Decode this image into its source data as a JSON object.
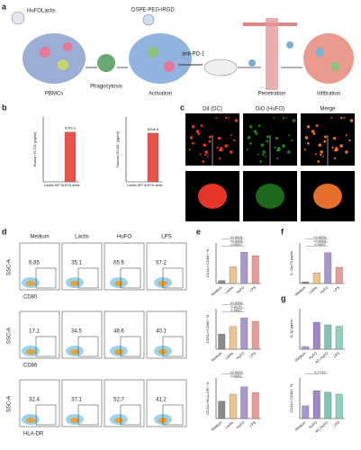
{
  "panel_labels": [
    "a",
    "b",
    "c",
    "d",
    "e",
    "f",
    "g"
  ],
  "schematic": {
    "agent": "HuFOLactis",
    "coating": "DSPE-PEG-iRGD",
    "drug": "anti-PD-1",
    "steps": [
      "PBMCs",
      "Phagocytosis",
      "Activation",
      "Penetration",
      "Infiltration"
    ]
  },
  "microscopy": {
    "columns": [
      "DiI (DC)",
      "DiO (HuFO)",
      "Merge"
    ]
  },
  "flow": {
    "columns": [
      "Medium",
      "Lactis",
      "HuFO",
      "LPS"
    ],
    "y_axis": "SSC-A",
    "rows": [
      {
        "marker": "CD80",
        "percentages": [
          "6.85",
          "35.1",
          "65.6",
          "57.2"
        ]
      },
      {
        "marker": "CD86",
        "percentages": [
          "17.1",
          "34.5",
          "46.6",
          "40.1"
        ]
      },
      {
        "marker": "HLA-DR",
        "percentages": [
          "32.4",
          "37.1",
          "52.7",
          "41.2"
        ]
      }
    ]
  },
  "chart_data": [
    {
      "type": "bar",
      "ylabel": "Human FLT3L (pg/ml)",
      "categories": [
        "Lactis-WT",
        "HuFOLactis"
      ],
      "values": [
        0,
        6149.2
      ],
      "value_labels": [
        null,
        "6149.2"
      ],
      "colors": [
        "#e8524a",
        "#e8524a"
      ],
      "ylim": [
        0,
        8000
      ],
      "annotations": []
    },
    {
      "type": "bar",
      "ylabel": "Human OX40L (pg/ml)",
      "categories": [
        "Lactis-WT",
        "HuFOLactis"
      ],
      "values": [
        0,
        6008.5
      ],
      "value_labels": [
        null,
        "6008.5"
      ],
      "colors": [
        "#e8524a",
        "#e8524a"
      ],
      "ylim": [
        0,
        8000
      ],
      "annotations": []
    },
    {
      "type": "bar",
      "ylabel": "CD11c+CD80+ %",
      "categories": [
        "Medium",
        "Lactis",
        "HuFO",
        "LPS"
      ],
      "values": [
        6,
        33,
        62,
        55
      ],
      "colors": [
        "#8a8a8a",
        "#f2c28b",
        "#a898d0",
        "#e99a9a"
      ],
      "ylim": [
        0,
        80
      ],
      "annotations": [
        "<0.0001",
        "<0.0001",
        "0.0002"
      ]
    },
    {
      "type": "bar",
      "ylabel": "CD11c+CD86+ %",
      "categories": [
        "Medium",
        "Lactis",
        "HuFO",
        "LPS"
      ],
      "values": [
        30,
        45,
        62,
        55
      ],
      "colors": [
        "#8a8a8a",
        "#f2c28b",
        "#a898d0",
        "#e99a9a"
      ],
      "ylim": [
        0,
        80
      ],
      "annotations": [
        "<0.0001",
        "0.0179",
        "0.0002"
      ]
    },
    {
      "type": "bar",
      "ylabel": "CD11c+HLA-DR+ %",
      "categories": [
        "Medium",
        "Lactis",
        "HuFO",
        "LPS"
      ],
      "values": [
        30,
        42,
        55,
        45
      ],
      "colors": [
        "#8a8a8a",
        "#f2c28b",
        "#a898d0",
        "#e99a9a"
      ],
      "ylim": [
        0,
        70
      ],
      "annotations": [
        "<0.0001",
        "0.0051"
      ]
    },
    {
      "type": "bar",
      "ylabel": "IL-12p70 pg/ml",
      "categories": [
        "Medium",
        "Lactis",
        "HuFO",
        "LPS"
      ],
      "values": [
        2,
        13,
        38,
        20
      ],
      "colors": [
        "#8a8a8a",
        "#f2c28b",
        "#a898d0",
        "#e99a9a"
      ],
      "ylim": [
        0,
        50
      ],
      "annotations": [
        "<0.0001",
        "<0.0001",
        "0.0002"
      ]
    },
    {
      "type": "bar",
      "ylabel": "IL-1β pg/ml",
      "categories": [
        "Medium",
        "HuFO",
        "AC-HuFO",
        "LPS"
      ],
      "values": [
        2,
        20,
        18,
        17
      ],
      "colors": [
        "#a898d0",
        "#9b86c8",
        "#7fc7b0",
        "#8fd3c1"
      ],
      "ylim": [
        0,
        30
      ],
      "annotations": []
    },
    {
      "type": "bar",
      "ylabel": "CD11c+CD80+ %",
      "categories": [
        "Medium",
        "HuFO",
        "AC-HuFO",
        "LPS"
      ],
      "values": [
        25,
        55,
        52,
        48
      ],
      "colors": [
        "#a898d0",
        "#9b86c8",
        "#7fc7b0",
        "#8fd3c1"
      ],
      "ylim": [
        0,
        80
      ],
      "annotations": [
        "0.7743"
      ]
    }
  ]
}
